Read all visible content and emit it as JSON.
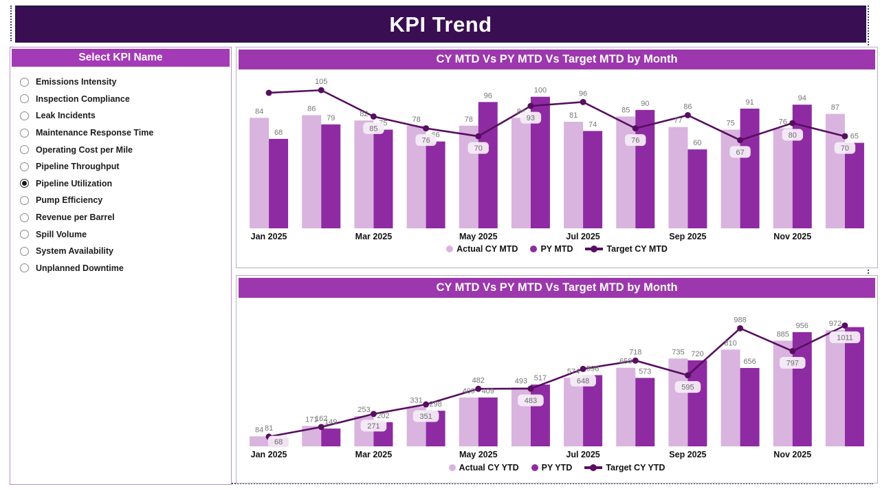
{
  "page": {
    "title": "KPI Trend"
  },
  "colors": {
    "header_bg": "#3a0e53",
    "panel_title_bg": "#a33ab6",
    "chart_title_bg": "#9c37ae",
    "actual_bar": "#d9b4de",
    "py_bar": "#8e2ba2",
    "target_line": "#570e60",
    "value_label": "#767676",
    "boxed_label_bg": "#f6ecf7",
    "boxed_label_text": "#6c6c6c",
    "axis_label": "#111111"
  },
  "sidebar": {
    "title": "Select KPI Name",
    "items": [
      {
        "label": "Emissions Intensity",
        "selected": false
      },
      {
        "label": "Inspection Compliance",
        "selected": false
      },
      {
        "label": "Leak Incidents",
        "selected": false
      },
      {
        "label": "Maintenance Response Time",
        "selected": false
      },
      {
        "label": "Operating Cost per Mile",
        "selected": false
      },
      {
        "label": "Pipeline Throughput",
        "selected": false
      },
      {
        "label": "Pipeline Utilization",
        "selected": true
      },
      {
        "label": "Pump Efficiency",
        "selected": false
      },
      {
        "label": "Revenue per Barrel",
        "selected": false
      },
      {
        "label": "Spill Volume",
        "selected": false
      },
      {
        "label": "System Availability",
        "selected": false
      },
      {
        "label": "Unplanned Downtime",
        "selected": false
      }
    ]
  },
  "chart_data": [
    {
      "type": "bar+line",
      "title": "CY MTD Vs PY MTD Vs Target MTD by Month",
      "categories": [
        "Jan 2025",
        "Feb 2025",
        "Mar 2025",
        "Apr 2025",
        "May 2025",
        "Jun 2025",
        "Jul 2025",
        "Aug 2025",
        "Sep 2025",
        "Oct 2025",
        "Nov 2025",
        "Dec 2025"
      ],
      "x_axis_ticks_shown": [
        "Jan 2025",
        "Mar 2025",
        "May 2025",
        "Jul 2025",
        "Sep 2025",
        "Nov 2025"
      ],
      "ylim": [
        0,
        115
      ],
      "grid": false,
      "legend_position": "bottom",
      "series": [
        {
          "name": "Actual CY MTD",
          "type": "bar",
          "color_key": "actual_bar",
          "values": [
            84,
            86,
            82,
            78,
            78,
            84,
            81,
            85,
            77,
            75,
            76,
            87
          ],
          "labels": [
            "84",
            "86",
            "82",
            "78",
            "78",
            "84",
            "81",
            "85",
            "77",
            "75",
            "76",
            "87"
          ],
          "boxed_labels": [
            false,
            false,
            false,
            false,
            false,
            false,
            false,
            false,
            false,
            false,
            false,
            false
          ]
        },
        {
          "name": "PY MTD",
          "type": "bar",
          "color_key": "py_bar",
          "values": [
            68,
            79,
            75,
            66,
            96,
            100,
            74,
            90,
            60,
            91,
            94,
            65
          ],
          "labels": [
            "68",
            "79",
            "75",
            "66",
            "96",
            "100",
            "74",
            "90",
            "60",
            "91",
            "94",
            "65"
          ],
          "boxed_labels": [
            false,
            false,
            false,
            false,
            false,
            false,
            false,
            false,
            false,
            false,
            false,
            false
          ]
        },
        {
          "name": "Target CY MTD",
          "type": "line",
          "color_key": "target_line",
          "values": [
            103,
            105,
            85,
            76,
            70,
            93,
            96,
            76,
            86,
            67,
            80,
            70
          ],
          "labels": [
            null,
            "105",
            "85",
            "76",
            "70",
            "93",
            "96",
            "76",
            "86",
            "67",
            "80",
            "70"
          ],
          "boxed_labels": [
            false,
            false,
            true,
            true,
            true,
            true,
            false,
            true,
            false,
            true,
            true,
            true
          ]
        }
      ]
    },
    {
      "type": "bar+line",
      "title": "CY MTD Vs PY MTD Vs Target MTD by Month",
      "categories": [
        "Jan 2025",
        "Feb 2025",
        "Mar 2025",
        "Apr 2025",
        "May 2025",
        "Jun 2025",
        "Jul 2025",
        "Aug 2025",
        "Sep 2025",
        "Oct 2025",
        "Nov 2025",
        "Dec 2025"
      ],
      "x_axis_ticks_shown": [
        "Jan 2025",
        "Mar 2025",
        "May 2025",
        "Jul 2025",
        "Sep 2025",
        "Nov 2025"
      ],
      "ylim": [
        0,
        1180
      ],
      "grid": false,
      "legend_position": "bottom",
      "series": [
        {
          "name": "Actual CY YTD",
          "type": "bar",
          "color_key": "actual_bar",
          "values": [
            84,
            171,
            253,
            331,
            409,
            493,
            574,
            658,
            735,
            810,
            885,
            972
          ],
          "labels": [
            "84",
            "171",
            "253",
            "331",
            "409",
            "493",
            "574",
            "658",
            "735",
            "810",
            "885",
            "972"
          ],
          "boxed_labels": [
            false,
            false,
            false,
            false,
            false,
            false,
            false,
            false,
            false,
            false,
            false,
            false
          ]
        },
        {
          "name": "PY YTD",
          "type": "bar",
          "color_key": "py_bar",
          "values": [
            68,
            149,
            202,
            298,
            409,
            517,
            596,
            573,
            720,
            656,
            956,
            998
          ],
          "labels": [
            "68",
            "149",
            "202",
            "298",
            "409",
            "517",
            "596",
            "573",
            "720",
            "656",
            "956",
            null
          ],
          "boxed_labels": [
            true,
            false,
            false,
            false,
            false,
            false,
            false,
            false,
            false,
            false,
            false,
            false
          ]
        },
        {
          "name": "Target CY YTD",
          "type": "line",
          "color_key": "target_line",
          "values": [
            81,
            162,
            271,
            351,
            482,
            483,
            648,
            718,
            595,
            988,
            797,
            1011
          ],
          "labels": [
            "81",
            "162",
            "271",
            "351",
            "482",
            "483",
            "648",
            "718",
            "595",
            "988",
            "797",
            "1011"
          ],
          "boxed_labels": [
            false,
            false,
            true,
            true,
            false,
            true,
            true,
            false,
            true,
            false,
            true,
            true
          ]
        }
      ]
    }
  ]
}
